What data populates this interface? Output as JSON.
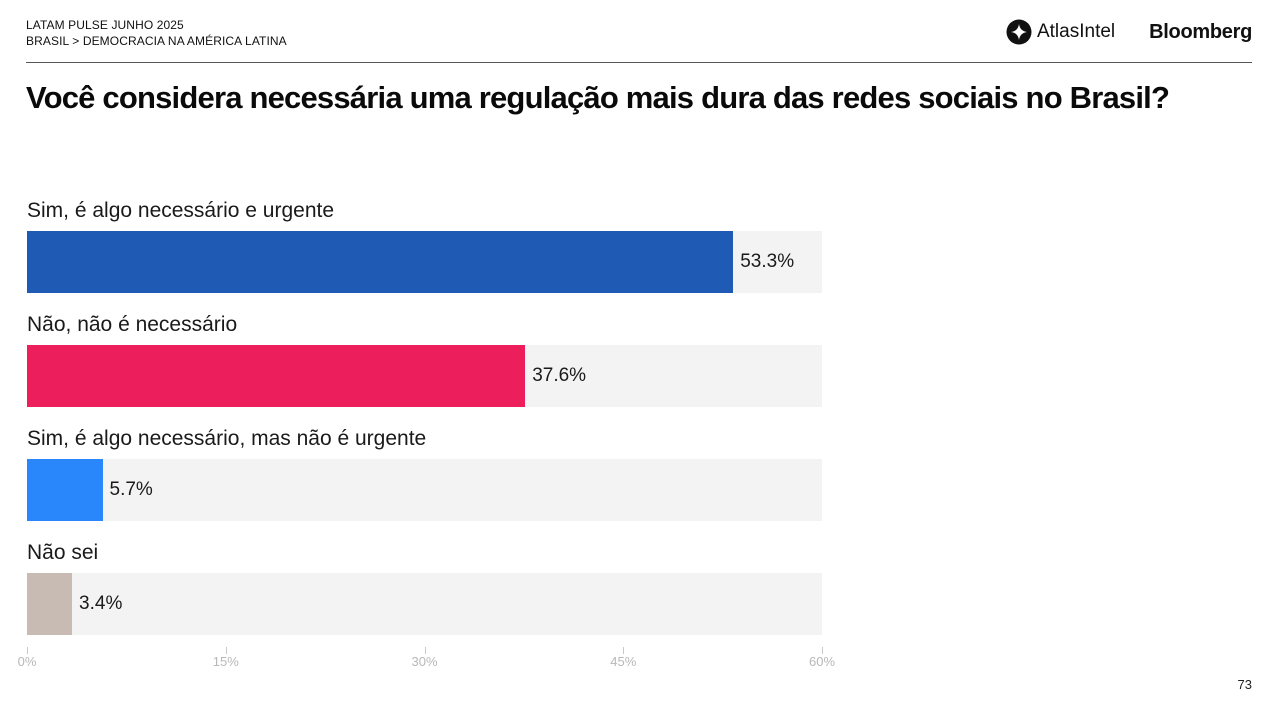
{
  "header": {
    "line1": "LATAM PULSE JUNHO 2025",
    "line2": "BRASIL > DEMOCRACIA NA AMÉRICA LATINA",
    "logo_atlas": "AtlasIntel",
    "logo_bloomberg": "Bloomberg"
  },
  "page_number": "73",
  "chart_data": {
    "type": "bar",
    "orientation": "horizontal",
    "title": "Você considera necessária uma regulação mais dura das redes sociais no Brasil?",
    "xlabel": "",
    "ylabel": "",
    "xlim": [
      0,
      60
    ],
    "grid": false,
    "categories": [
      "Sim, é algo necessário e urgente",
      "Não, não é necessário",
      "Sim, é algo necessário, mas não é urgente",
      "Não sei"
    ],
    "values": [
      53.3,
      37.6,
      5.7,
      3.4
    ],
    "value_labels": [
      "53.3%",
      "37.6%",
      "5.7%",
      "3.4%"
    ],
    "colors": [
      "#1f5bb5",
      "#ec1e5c",
      "#2a86fb",
      "#c8bbb4"
    ],
    "track_color": "#f3f3f3",
    "ticks": [
      0,
      15,
      30,
      45,
      60
    ],
    "tick_labels": [
      "0%",
      "15%",
      "30%",
      "45%",
      "60%"
    ]
  }
}
